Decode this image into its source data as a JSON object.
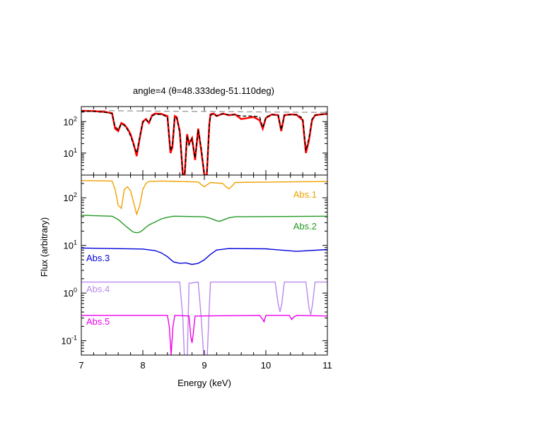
{
  "chart_data": [
    {
      "type": "line",
      "panel": "top",
      "title": "angle=4 (θ=48.333deg-51.110deg)",
      "xlim": [
        7,
        11
      ],
      "ylim": [
        2,
        300
      ],
      "yscale": "log",
      "yticks": [
        {
          "v": 10,
          "b": "10",
          "e": "1"
        },
        {
          "v": 100,
          "b": "10",
          "e": "2"
        }
      ],
      "series": [
        {
          "role": "continuum",
          "color": "#a0a0a0",
          "dash": "8,5",
          "x": [
            7.0,
            11.0
          ],
          "y": [
            225,
            195
          ]
        },
        {
          "role": "data",
          "color": "#ff0000",
          "x": [
            7.0,
            7.2,
            7.4,
            7.5,
            7.55,
            7.6,
            7.65,
            7.7,
            7.75,
            7.8,
            7.85,
            7.9,
            7.95,
            8.0,
            8.05,
            8.1,
            8.15,
            8.2,
            8.3,
            8.4,
            8.45,
            8.48,
            8.52,
            8.55,
            8.6,
            8.65,
            8.68,
            8.72,
            8.75,
            8.8,
            8.85,
            8.9,
            8.95,
            9.0,
            9.04,
            9.08,
            9.1,
            9.15,
            9.2,
            9.3,
            9.4,
            9.5,
            9.6,
            9.8,
            9.9,
            9.95,
            10.0,
            10.1,
            10.2,
            10.25,
            10.3,
            10.4,
            10.5,
            10.6,
            10.65,
            10.7,
            10.75,
            10.8,
            10.9,
            11.0
          ],
          "y": [
            220,
            215,
            200,
            185,
            60,
            50,
            90,
            80,
            60,
            40,
            20,
            8,
            30,
            100,
            120,
            90,
            160,
            180,
            175,
            150,
            10,
            15,
            150,
            140,
            50,
            2,
            2,
            40,
            20,
            30,
            6,
            60,
            12,
            2,
            2,
            80,
            170,
            180,
            150,
            180,
            160,
            170,
            120,
            140,
            110,
            60,
            130,
            170,
            160,
            50,
            160,
            170,
            165,
            110,
            10,
            25,
            110,
            160,
            170,
            175
          ]
        },
        {
          "role": "model",
          "color": "#000000",
          "dash": "5,3",
          "x": [
            7.0,
            7.2,
            7.4,
            7.5,
            7.55,
            7.6,
            7.65,
            7.7,
            7.75,
            7.8,
            7.85,
            7.9,
            7.95,
            8.0,
            8.05,
            8.1,
            8.15,
            8.2,
            8.3,
            8.4,
            8.45,
            8.48,
            8.52,
            8.55,
            8.6,
            8.65,
            8.68,
            8.72,
            8.75,
            8.8,
            8.85,
            8.9,
            8.95,
            9.0,
            9.04,
            9.08,
            9.1,
            9.15,
            9.2,
            9.3,
            9.4,
            9.5,
            9.6,
            9.8,
            9.9,
            9.95,
            10.0,
            10.1,
            10.2,
            10.25,
            10.3,
            10.4,
            10.5,
            10.6,
            10.65,
            10.7,
            10.75,
            10.8,
            10.9,
            11.0
          ],
          "y": [
            215,
            210,
            195,
            180,
            70,
            55,
            85,
            75,
            55,
            35,
            18,
            10,
            35,
            95,
            115,
            95,
            150,
            170,
            170,
            140,
            12,
            18,
            140,
            130,
            45,
            2,
            2,
            35,
            18,
            28,
            7,
            55,
            15,
            2,
            2,
            75,
            160,
            175,
            155,
            175,
            165,
            165,
            150,
            150,
            140,
            65,
            140,
            165,
            160,
            55,
            160,
            165,
            165,
            130,
            12,
            30,
            120,
            160,
            170,
            175
          ]
        }
      ]
    },
    {
      "type": "line",
      "panel": "bottom",
      "xlabel": "Energy (keV)",
      "ylabel": "Flux (arbitrary)",
      "xlim": [
        7,
        11
      ],
      "ylim": [
        0.05,
        300
      ],
      "yscale": "log",
      "xticks": [
        7,
        8,
        9,
        10,
        11
      ],
      "yticks": [
        {
          "v": 0.1,
          "b": "10",
          "e": "-1"
        },
        {
          "v": 1,
          "b": "10",
          "e": "0"
        },
        {
          "v": 10,
          "b": "10",
          "e": "1"
        },
        {
          "v": 100,
          "b": "10",
          "e": "2"
        }
      ],
      "series": [
        {
          "name": "Abs.1",
          "color": "#f0a000",
          "x": [
            7.0,
            7.5,
            7.55,
            7.6,
            7.65,
            7.7,
            7.75,
            7.8,
            7.85,
            7.9,
            7.95,
            8.0,
            8.05,
            8.1,
            8.3,
            8.9,
            8.95,
            9.0,
            9.05,
            9.1,
            9.3,
            9.35,
            9.4,
            9.45,
            9.5,
            11.0
          ],
          "y": [
            230,
            225,
            150,
            70,
            60,
            150,
            170,
            140,
            80,
            45,
            70,
            150,
            200,
            220,
            225,
            215,
            190,
            170,
            190,
            210,
            200,
            170,
            155,
            175,
            210,
            220
          ]
        },
        {
          "name": "Abs.2",
          "color": "#229922",
          "x": [
            7.0,
            7.5,
            7.6,
            7.7,
            7.8,
            7.85,
            7.9,
            7.95,
            8.0,
            8.05,
            8.1,
            8.2,
            8.3,
            8.4,
            8.5,
            9.0,
            9.1,
            9.2,
            9.25,
            9.3,
            9.4,
            9.5,
            11.0
          ],
          "y": [
            43,
            41,
            35,
            27,
            21,
            19,
            18.5,
            19,
            21,
            24,
            27,
            31,
            36,
            39,
            41,
            40,
            37,
            33,
            32,
            34,
            38,
            40,
            41
          ]
        },
        {
          "name": "Abs.3",
          "color": "#0000dd",
          "x": [
            7.0,
            8.0,
            8.2,
            8.3,
            8.4,
            8.5,
            8.6,
            8.7,
            8.8,
            8.9,
            9.0,
            9.1,
            9.2,
            9.4,
            10.0,
            10.5,
            11.0
          ],
          "y": [
            8.8,
            8.4,
            7.8,
            7.0,
            5.8,
            4.5,
            4.2,
            4.3,
            4.0,
            4.2,
            5.0,
            6.5,
            8.0,
            8.6,
            8.5,
            7.5,
            8.2
          ]
        },
        {
          "name": "Abs.4",
          "color": "#bb88ee",
          "x": [
            7.0,
            8.6,
            8.65,
            8.68,
            8.72,
            8.75,
            8.9,
            8.95,
            9.0,
            9.04,
            9.08,
            9.1,
            10.15,
            10.2,
            10.23,
            10.26,
            10.3,
            10.65,
            10.7,
            10.73,
            10.76,
            10.8,
            11.0
          ],
          "y": [
            1.7,
            1.7,
            0.3,
            0.03,
            0.03,
            1.6,
            1.7,
            0.3,
            0.03,
            0.03,
            0.5,
            1.7,
            1.7,
            0.6,
            0.4,
            0.6,
            1.7,
            1.7,
            0.5,
            0.35,
            0.6,
            1.7,
            1.7
          ]
        },
        {
          "name": "Abs.5",
          "color": "#ee00ee",
          "x": [
            7.0,
            8.4,
            8.43,
            8.46,
            8.49,
            8.52,
            8.75,
            8.78,
            8.8,
            8.82,
            8.85,
            9.9,
            9.95,
            9.97,
            10.0,
            10.38,
            10.42,
            10.45,
            10.5,
            11.0
          ],
          "y": [
            0.34,
            0.34,
            0.2,
            0.05,
            0.2,
            0.34,
            0.33,
            0.12,
            0.09,
            0.14,
            0.33,
            0.34,
            0.28,
            0.25,
            0.34,
            0.34,
            0.28,
            0.31,
            0.34,
            0.33
          ]
        }
      ]
    }
  ]
}
